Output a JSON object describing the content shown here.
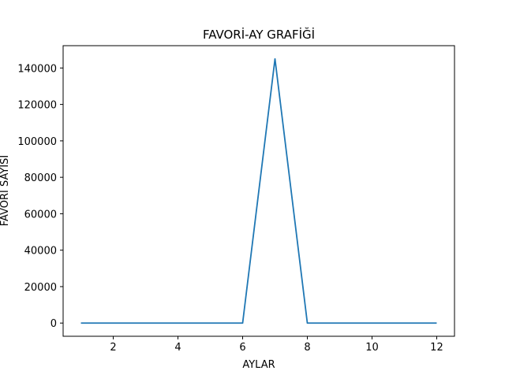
{
  "chart_data": {
    "type": "line",
    "title": "FAVORİ-AY GRAFİĞİ",
    "xlabel": "AYLAR",
    "ylabel": "FAVORİ SAYISI",
    "x": [
      1,
      2,
      3,
      4,
      5,
      6,
      7,
      8,
      9,
      10,
      11,
      12
    ],
    "series": [
      {
        "values": [
          0,
          0,
          0,
          0,
          0,
          0,
          145000,
          0,
          0,
          0,
          0,
          0
        ]
      }
    ],
    "xlim": [
      0.45,
      12.55
    ],
    "ylim": [
      -7250,
      152250
    ],
    "xticks": [
      2,
      4,
      6,
      8,
      10,
      12
    ],
    "yticks": [
      0,
      20000,
      40000,
      60000,
      80000,
      100000,
      120000,
      140000
    ],
    "line_color": "#1f77b4",
    "grid": false,
    "legend": "none"
  }
}
